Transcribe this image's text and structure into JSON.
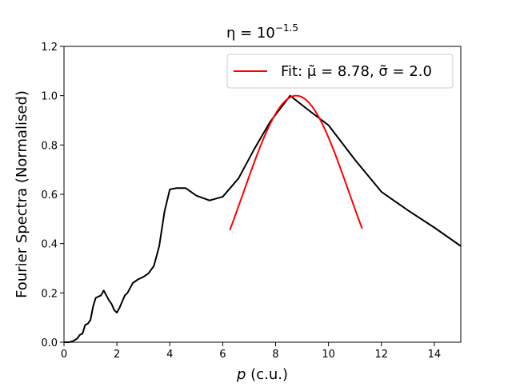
{
  "chart_data": {
    "type": "line",
    "title": "η = 10",
    "title_exponent": "−1.5",
    "xlabel": "p",
    "xlabel_unit": " (c.u.)",
    "ylabel": "Fourier Spectra (Normalised)",
    "xlim": [
      0,
      15
    ],
    "ylim": [
      0,
      1.2
    ],
    "xticks": [
      0,
      2,
      4,
      6,
      8,
      10,
      12,
      14
    ],
    "xtick_labels": [
      "0",
      "2",
      "4",
      "6",
      "8",
      "10",
      "12",
      "14"
    ],
    "yticks": [
      0.0,
      0.2,
      0.4,
      0.6,
      0.8,
      1.0,
      1.2
    ],
    "ytick_labels": [
      "0.0",
      "0.2",
      "0.4",
      "0.6",
      "0.8",
      "1.0",
      "1.2"
    ],
    "grid": false,
    "legend_position": "top-right",
    "series": [
      {
        "color": "#000000",
        "x": [
          0.0,
          0.2,
          0.35,
          0.5,
          0.6,
          0.7,
          0.8,
          0.9,
          1.0,
          1.1,
          1.2,
          1.3,
          1.4,
          1.5,
          1.6,
          1.7,
          1.8,
          1.9,
          2.0,
          2.1,
          2.2,
          2.3,
          2.4,
          2.5,
          2.6,
          2.8,
          3.0,
          3.2,
          3.4,
          3.6,
          3.8,
          4.0,
          4.25,
          4.6,
          5.0,
          5.5,
          6.0,
          6.6,
          7.2,
          7.8,
          8.55,
          9.2,
          10.0,
          11.0,
          12.0,
          13.0,
          14.0,
          15.0
        ],
        "y": [
          0.0,
          0.0,
          0.005,
          0.015,
          0.03,
          0.035,
          0.07,
          0.075,
          0.09,
          0.145,
          0.18,
          0.185,
          0.19,
          0.21,
          0.19,
          0.17,
          0.155,
          0.13,
          0.12,
          0.14,
          0.165,
          0.19,
          0.2,
          0.22,
          0.24,
          0.255,
          0.265,
          0.28,
          0.31,
          0.39,
          0.53,
          0.62,
          0.625,
          0.625,
          0.595,
          0.575,
          0.59,
          0.665,
          0.785,
          0.895,
          1.0,
          0.945,
          0.88,
          0.74,
          0.61,
          0.535,
          0.465,
          0.39
        ]
      },
      {
        "name": "Fit: μ̃ = 8.78, σ̃ = 2.0",
        "color": "#ff0000",
        "mu": 8.78,
        "sigma": 2.0,
        "x_range": [
          6.27,
          11.27
        ],
        "function": "exp(-(x-mu)^2/(2*sigma^2))"
      }
    ]
  }
}
